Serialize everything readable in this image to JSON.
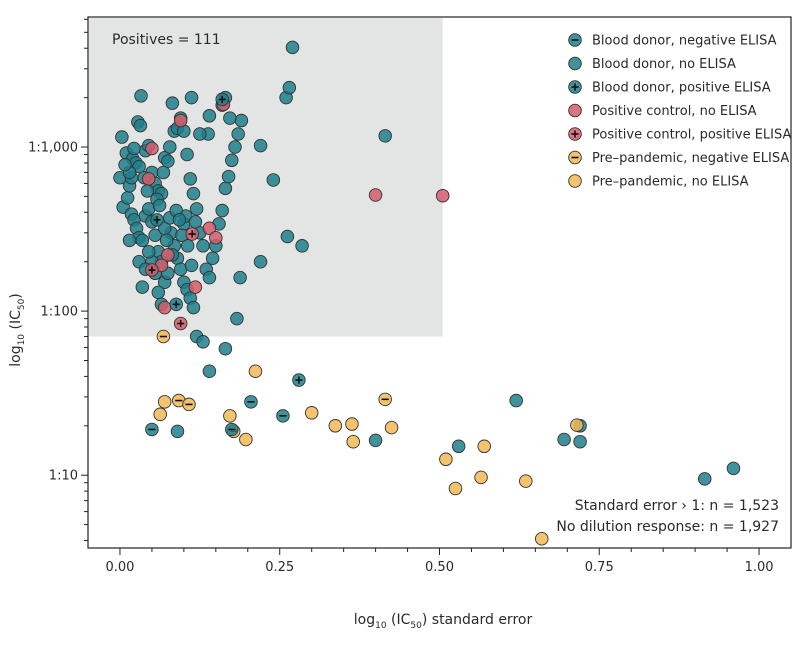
{
  "chart_data": {
    "type": "scatter",
    "xlabel": {
      "main": "log",
      "sub": "10",
      "rest1": " (IC",
      "sub2": "50",
      "rest2": ") standard error"
    },
    "ylabel": {
      "main": "log",
      "sub": "10",
      "rest1": " (IC",
      "sub2": "50",
      "rest2": ")"
    },
    "x_ticks": [
      "0.00",
      "0.25",
      "0.50",
      "0.75",
      "1.00"
    ],
    "x_tick_values": [
      0,
      0.25,
      0.5,
      0.75,
      1.0
    ],
    "y_ticks": [
      "1:10",
      "1:100",
      "1:1,000"
    ],
    "y_tick_values": [
      10,
      100,
      1000
    ],
    "xlim": [
      -0.05,
      1.05
    ],
    "ylim": [
      3.6,
      6200
    ],
    "y_scale": "log",
    "legend_position": "top-right",
    "region": {
      "label": "Positives = 111",
      "x_range": [
        -0.05,
        0.505
      ],
      "y_range": [
        70,
        6200
      ]
    },
    "annotations": [
      "Standard error › 1: n = 1,523",
      "No dilution response: n = 1,927"
    ],
    "series": [
      {
        "name": "Blood donor, negative ELISA",
        "color": "#1f7f8c",
        "marker": "minus",
        "points": [
          [
            0.05,
            19
          ],
          [
            0.175,
            19
          ],
          [
            0.205,
            28
          ],
          [
            0.255,
            23
          ]
        ]
      },
      {
        "name": "Blood donor, no ELISA",
        "color": "#1f7f8c",
        "marker": "none",
        "points": [
          [
            0.003,
            1150
          ],
          [
            0.0,
            650
          ],
          [
            0.005,
            430
          ],
          [
            0.012,
            490
          ],
          [
            0.015,
            580
          ],
          [
            0.018,
            650
          ],
          [
            0.01,
            920
          ],
          [
            0.02,
            850
          ],
          [
            0.025,
            800
          ],
          [
            0.03,
            760
          ],
          [
            0.028,
            1420
          ],
          [
            0.032,
            1350
          ],
          [
            0.033,
            2050
          ],
          [
            0.04,
            950
          ],
          [
            0.045,
            1020
          ],
          [
            0.05,
            700
          ],
          [
            0.055,
            600
          ],
          [
            0.06,
            540
          ],
          [
            0.065,
            520
          ],
          [
            0.07,
            860
          ],
          [
            0.075,
            820
          ],
          [
            0.078,
            1000
          ],
          [
            0.082,
            1850
          ],
          [
            0.085,
            1250
          ],
          [
            0.09,
            1300
          ],
          [
            0.095,
            1500
          ],
          [
            0.1,
            1250
          ],
          [
            0.105,
            900
          ],
          [
            0.11,
            640
          ],
          [
            0.115,
            520
          ],
          [
            0.12,
            420
          ],
          [
            0.125,
            300
          ],
          [
            0.13,
            250
          ],
          [
            0.135,
            180
          ],
          [
            0.14,
            160
          ],
          [
            0.145,
            210
          ],
          [
            0.15,
            250
          ],
          [
            0.155,
            340
          ],
          [
            0.16,
            410
          ],
          [
            0.165,
            560
          ],
          [
            0.17,
            660
          ],
          [
            0.175,
            830
          ],
          [
            0.18,
            1000
          ],
          [
            0.185,
            1200
          ],
          [
            0.19,
            1450
          ],
          [
            0.172,
            1500
          ],
          [
            0.16,
            1800
          ],
          [
            0.165,
            2000
          ],
          [
            0.138,
            1200
          ],
          [
            0.14,
            1550
          ],
          [
            0.188,
            160
          ],
          [
            0.183,
            90
          ],
          [
            0.165,
            59
          ],
          [
            0.14,
            43
          ],
          [
            0.12,
            70
          ],
          [
            0.13,
            65
          ],
          [
            0.018,
            390
          ],
          [
            0.022,
            360
          ],
          [
            0.026,
            320
          ],
          [
            0.03,
            280
          ],
          [
            0.015,
            270
          ],
          [
            0.035,
            270
          ],
          [
            0.04,
            380
          ],
          [
            0.045,
            420
          ],
          [
            0.05,
            350
          ],
          [
            0.055,
            290
          ],
          [
            0.06,
            230
          ],
          [
            0.065,
            200
          ],
          [
            0.07,
            150
          ],
          [
            0.075,
            170
          ],
          [
            0.08,
            300
          ],
          [
            0.085,
            250
          ],
          [
            0.09,
            210
          ],
          [
            0.095,
            180
          ],
          [
            0.1,
            150
          ],
          [
            0.105,
            135
          ],
          [
            0.11,
            120
          ],
          [
            0.115,
            105
          ],
          [
            0.05,
            200
          ],
          [
            0.055,
            170
          ],
          [
            0.06,
            130
          ],
          [
            0.065,
            110
          ],
          [
            0.03,
            200
          ],
          [
            0.035,
            140
          ],
          [
            0.04,
            180
          ],
          [
            0.045,
            230
          ],
          [
            0.1,
            340
          ],
          [
            0.103,
            380
          ],
          [
            0.106,
            250
          ],
          [
            0.112,
            190
          ],
          [
            0.118,
            350
          ],
          [
            0.07,
            320
          ],
          [
            0.073,
            270
          ],
          [
            0.078,
            370
          ],
          [
            0.082,
            220
          ],
          [
            0.088,
            410
          ],
          [
            0.093,
            360
          ],
          [
            0.097,
            290
          ],
          [
            0.015,
            700
          ],
          [
            0.008,
            780
          ],
          [
            0.022,
            980
          ],
          [
            0.038,
            650
          ],
          [
            0.043,
            540
          ],
          [
            0.058,
            480
          ],
          [
            0.062,
            440
          ],
          [
            0.068,
            700
          ],
          [
            0.22,
            1020
          ],
          [
            0.22,
            200
          ],
          [
            0.24,
            630
          ],
          [
            0.26,
            2000
          ],
          [
            0.265,
            2300
          ],
          [
            0.27,
            4050
          ],
          [
            0.285,
            250
          ],
          [
            0.262,
            285
          ],
          [
            0.415,
            1170
          ],
          [
            0.915,
            9.5
          ],
          [
            0.96,
            11
          ],
          [
            0.62,
            28.5
          ],
          [
            0.695,
            16.5
          ],
          [
            0.72,
            16
          ],
          [
            0.72,
            20
          ],
          [
            0.4,
            16.3
          ],
          [
            0.53,
            15
          ],
          [
            0.09,
            18.5
          ],
          [
            0.125,
            1200
          ],
          [
            0.112,
            2000
          ]
        ]
      },
      {
        "name": "Blood donor, positive ELISA",
        "color": "#1f7f8c",
        "marker": "plus",
        "points": [
          [
            0.16,
            1950
          ],
          [
            0.058,
            360
          ],
          [
            0.088,
            110
          ],
          [
            0.28,
            38
          ]
        ]
      },
      {
        "name": "Positive control, no ELISA",
        "color": "#d45d6b",
        "marker": "none",
        "points": [
          [
            0.045,
            640
          ],
          [
            0.05,
            980
          ],
          [
            0.095,
            1450
          ],
          [
            0.14,
            320
          ],
          [
            0.15,
            280
          ],
          [
            0.162,
            1820
          ],
          [
            0.4,
            510
          ],
          [
            0.505,
            505
          ],
          [
            0.07,
            105
          ],
          [
            0.075,
            220
          ],
          [
            0.118,
            140
          ],
          [
            0.065,
            190
          ]
        ]
      },
      {
        "name": "Positive control, positive ELISA",
        "color": "#d45d6b",
        "marker": "plus",
        "points": [
          [
            0.05,
            178
          ],
          [
            0.113,
            295
          ],
          [
            0.095,
            84
          ]
        ]
      },
      {
        "name": "Pre–pandemic, negative ELISA",
        "color": "#f2b955",
        "marker": "minus",
        "points": [
          [
            0.068,
            70
          ],
          [
            0.092,
            28.5
          ],
          [
            0.108,
            27
          ],
          [
            0.178,
            18.5
          ],
          [
            0.415,
            29
          ]
        ]
      },
      {
        "name": "Pre–pandemic, no ELISA",
        "color": "#f2b955",
        "marker": "none",
        "points": [
          [
            0.07,
            28
          ],
          [
            0.063,
            23.5
          ],
          [
            0.172,
            23
          ],
          [
            0.197,
            16.5
          ],
          [
            0.212,
            43
          ],
          [
            0.3,
            24
          ],
          [
            0.337,
            20
          ],
          [
            0.363,
            20.5
          ],
          [
            0.365,
            16
          ],
          [
            0.425,
            19.5
          ],
          [
            0.51,
            12.5
          ],
          [
            0.525,
            8.3
          ],
          [
            0.565,
            9.7
          ],
          [
            0.57,
            15
          ],
          [
            0.635,
            9.2
          ],
          [
            0.66,
            4.1
          ],
          [
            0.715,
            20.2
          ]
        ]
      }
    ]
  }
}
